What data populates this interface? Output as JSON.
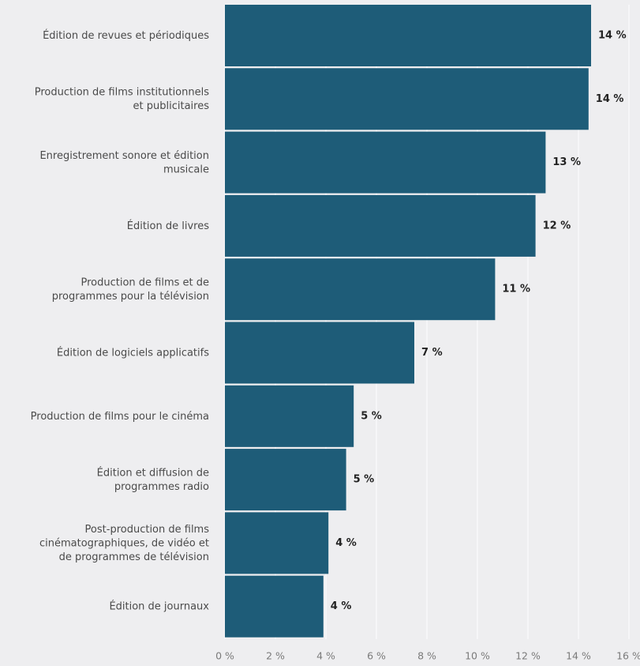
{
  "chart_data": {
    "type": "bar",
    "orientation": "horizontal",
    "categories": [
      [
        "Édition de revues et périodiques"
      ],
      [
        "Production de films institutionnels",
        "et publicitaires"
      ],
      [
        "Enregistrement sonore et édition",
        "musicale"
      ],
      [
        "Édition de livres"
      ],
      [
        "Production de films et de",
        "programmes pour la télévision"
      ],
      [
        "Édition de logiciels applicatifs"
      ],
      [
        "Production de films pour le cinéma"
      ],
      [
        "Édition et diffusion de",
        "programmes radio"
      ],
      [
        "Post-production de films",
        "cinématographiques, de vidéo et",
        "de programmes de télévision"
      ],
      [
        "Édition de journaux"
      ]
    ],
    "values": [
      14.5,
      14.4,
      12.7,
      12.3,
      10.7,
      7.5,
      5.1,
      4.8,
      4.1,
      3.9
    ],
    "value_labels": [
      "14 %",
      "14 %",
      "13 %",
      "12 %",
      "11 %",
      "7 %",
      "5 %",
      "5 %",
      "4 %",
      "4 %"
    ],
    "xticks": [
      0,
      2,
      4,
      6,
      8,
      10,
      12,
      14,
      16
    ],
    "xtick_labels": [
      "0 %",
      "2 %",
      "4 %",
      "6 %",
      "8 %",
      "10 %",
      "12 %",
      "14 %",
      "16 %"
    ],
    "xlim": [
      0,
      16
    ],
    "grid": true,
    "bar_color": "#1e5c78",
    "background_color": "#eeeef0",
    "title": "",
    "xlabel": "",
    "ylabel": ""
  }
}
